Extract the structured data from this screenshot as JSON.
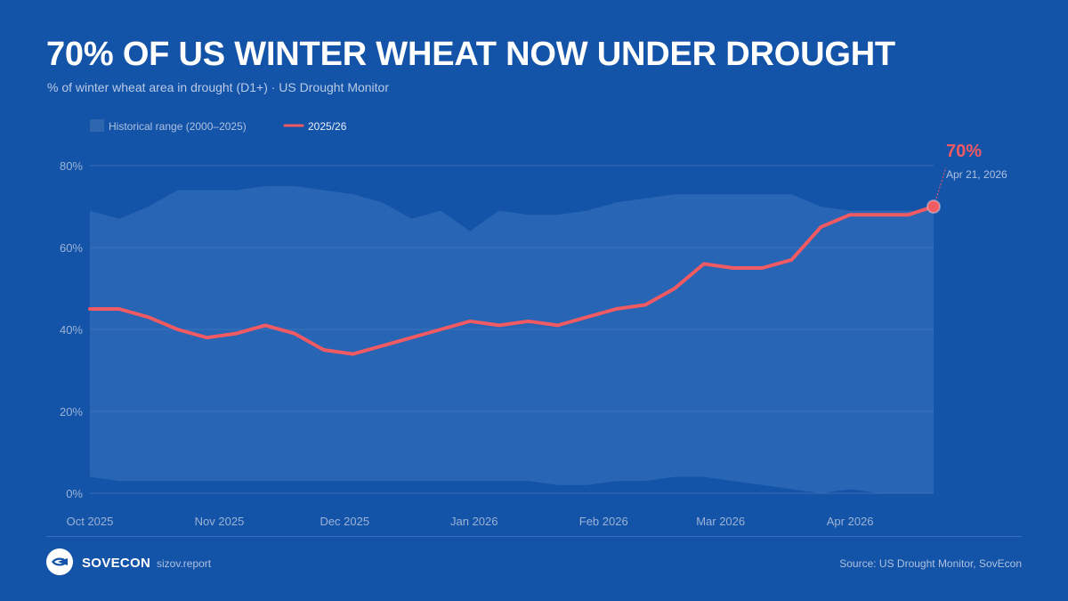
{
  "header": {
    "title": "70% OF US WINTER WHEAT NOW UNDER DROUGHT",
    "subtitle": "% of winter wheat area in drought (D1+) · US Drought Monitor"
  },
  "colors": {
    "background": "#1353a8",
    "range_fill": "#2c63ad",
    "current_line": "#ef5a63",
    "grid": "#3a6fb8"
  },
  "chart_data": {
    "type": "area",
    "ylim": [
      0,
      80
    ],
    "yticks": [
      0,
      20,
      40,
      60,
      80
    ],
    "ytick_labels": [
      "0%",
      "20%",
      "40%",
      "60%",
      "80%"
    ],
    "x_tick_labels": [
      {
        "date": "2025-10-01",
        "label": "Oct 2025"
      },
      {
        "date": "2025-11-01",
        "label": "Nov 2025"
      },
      {
        "date": "2025-12-01",
        "label": "Dec 2025"
      },
      {
        "date": "2026-01-01",
        "label": "Jan 2026"
      },
      {
        "date": "2026-02-01",
        "label": "Feb 2026"
      },
      {
        "date": "2026-03-01",
        "label": "Mar 2026"
      },
      {
        "date": "2026-04-01",
        "label": "Apr 2026"
      }
    ],
    "grid": true,
    "legend_position": "top-left",
    "series": [
      {
        "name": "Historical range (2000–2025)",
        "kind": "range",
        "dates": [
          "2025-10-01",
          "2025-10-08",
          "2025-10-15",
          "2025-10-22",
          "2025-10-29",
          "2025-11-05",
          "2025-11-12",
          "2025-11-19",
          "2025-11-26",
          "2025-12-03",
          "2025-12-10",
          "2025-12-17",
          "2025-12-24",
          "2025-12-31",
          "2026-01-07",
          "2026-01-14",
          "2026-01-21",
          "2026-01-28",
          "2026-02-04",
          "2026-02-11",
          "2026-02-18",
          "2026-02-25",
          "2026-03-04",
          "2026-03-11",
          "2026-03-18",
          "2026-03-25",
          "2026-04-01",
          "2026-04-08",
          "2026-04-15",
          "2026-04-21"
        ],
        "upper": [
          69,
          67,
          70,
          74,
          74,
          74,
          75,
          75,
          74,
          73,
          71,
          67,
          69,
          64,
          69,
          68,
          68,
          69,
          71,
          72,
          73,
          73,
          73,
          73,
          73,
          70,
          69,
          69,
          69,
          69
        ],
        "lower": [
          4,
          3,
          3,
          3,
          3,
          3,
          3,
          3,
          3,
          3,
          3,
          3,
          3,
          3,
          3,
          3,
          2,
          2,
          3,
          3,
          4,
          4,
          3,
          2,
          1,
          0,
          1,
          0,
          0,
          0
        ]
      },
      {
        "name": "2025/26",
        "kind": "line",
        "dates": [
          "2025-10-01",
          "2025-10-08",
          "2025-10-15",
          "2025-10-22",
          "2025-10-29",
          "2025-11-05",
          "2025-11-12",
          "2025-11-19",
          "2025-11-26",
          "2025-12-03",
          "2025-12-10",
          "2025-12-17",
          "2025-12-24",
          "2025-12-31",
          "2026-01-07",
          "2026-01-14",
          "2026-01-21",
          "2026-01-28",
          "2026-02-04",
          "2026-02-11",
          "2026-02-18",
          "2026-02-25",
          "2026-03-04",
          "2026-03-11",
          "2026-03-18",
          "2026-03-25",
          "2026-04-01",
          "2026-04-08",
          "2026-04-15",
          "2026-04-21"
        ],
        "values": [
          45,
          45,
          43,
          40,
          38,
          39,
          41,
          39,
          35,
          34,
          36,
          38,
          40,
          42,
          41,
          42,
          41,
          43,
          45,
          46,
          50,
          56,
          55,
          55,
          57,
          65,
          68,
          68,
          68,
          70
        ]
      }
    ],
    "annotation": {
      "value_label": "70%",
      "date_label": "Apr 21, 2026"
    }
  },
  "footer": {
    "brand": "SOVECON",
    "site": "sizov.report",
    "source": "Source: US Drought Monitor, SovEcon"
  }
}
